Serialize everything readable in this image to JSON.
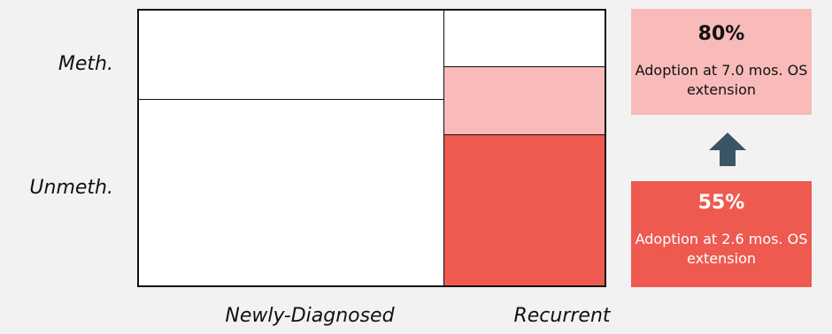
{
  "rows": {
    "top": "Meth.",
    "bottom": "Unmeth."
  },
  "columns": {
    "left": "Newly-Diagnosed",
    "right": "Recurrent"
  },
  "colors": {
    "light_red": "#f8bbb9",
    "red": "#ee5a50",
    "arrow": "#3b5566"
  },
  "callouts": {
    "high": {
      "percent": "80%",
      "text": "Adoption at 7.0 mos. OS extension"
    },
    "low": {
      "percent": "55%",
      "text": "Adoption at 2.6 mos. OS extension"
    }
  },
  "arrow_icon": "arrow-up-icon"
}
